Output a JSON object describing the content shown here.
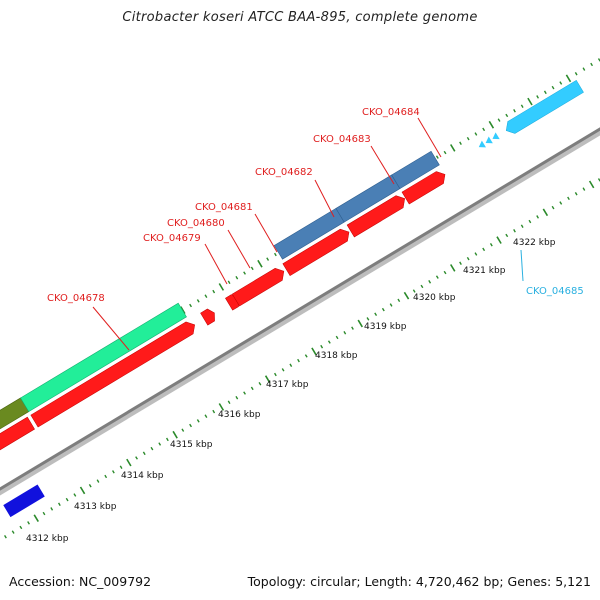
{
  "title": "Citrobacter koseri ATCC BAA-895, complete genome",
  "footer": {
    "accession": "Accession: NC_009792",
    "stats": "Topology: circular; Length: 4,720,462 bp; Genes: 5,121"
  },
  "colors": {
    "gene_label": "#e02020",
    "gene_label_alt": "#2ab0e0",
    "cds_red": "#ff1a1a",
    "operon_blue": "#4a7fb5",
    "feature_green": "#22ee99",
    "feature_olive": "#6a8a20",
    "feature_cyan": "#33ccff",
    "feature_navy": "#1111dd",
    "ticks": "#2b8a2b",
    "backbone": "#999999"
  },
  "ruler": {
    "ticks": [
      {
        "label": "4312 kbp"
      },
      {
        "label": "4313 kbp"
      },
      {
        "label": "4314 kbp"
      },
      {
        "label": "4315 kbp"
      },
      {
        "label": "4316 kbp"
      },
      {
        "label": "4317 kbp"
      },
      {
        "label": "4318 kbp"
      },
      {
        "label": "4319 kbp"
      },
      {
        "label": "4320 kbp"
      },
      {
        "label": "4321 kbp"
      },
      {
        "label": "4322 kbp"
      }
    ]
  },
  "genes": [
    {
      "label": "CKO_04678"
    },
    {
      "label": "CKO_04679"
    },
    {
      "label": "CKO_04680"
    },
    {
      "label": "CKO_04681"
    },
    {
      "label": "CKO_04682"
    },
    {
      "label": "CKO_04683"
    },
    {
      "label": "CKO_04684"
    },
    {
      "label": "CKO_04685"
    }
  ]
}
